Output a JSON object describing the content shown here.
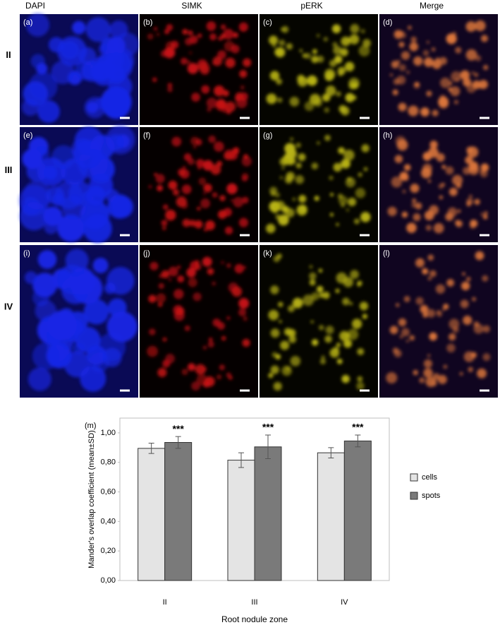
{
  "figure": {
    "columns": [
      "DAPI",
      "SIMK",
      "pERK",
      "Merge"
    ],
    "rows": [
      "II",
      "III",
      "IV"
    ],
    "panel_labels": [
      "(a)",
      "(b)",
      "(c)",
      "(d)",
      "(e)",
      "(f)",
      "(g)",
      "(h)",
      "(i)",
      "(j)",
      "(k)",
      "(l)"
    ]
  },
  "chart_data": {
    "type": "bar",
    "panel_label": "(m)",
    "x_label": "Root nodule zone",
    "y_label": "Mander's overlap coefficient (mean±SD)",
    "categories": [
      "II",
      "III",
      "IV"
    ],
    "series": [
      {
        "name": "cells",
        "color": "#e4e4e4",
        "values": [
          0.895,
          0.815,
          0.865
        ],
        "errors": [
          0.035,
          0.05,
          0.035
        ]
      },
      {
        "name": "spots",
        "color": "#7a7a7a",
        "values": [
          0.935,
          0.905,
          0.945
        ],
        "errors": [
          0.04,
          0.08,
          0.04
        ]
      }
    ],
    "annotations": [
      "***",
      "***",
      "***"
    ],
    "ylim": [
      0,
      1.1
    ],
    "yticks": [
      {
        "value": 0,
        "label": "0,00"
      },
      {
        "value": 0.2,
        "label": "0,20"
      },
      {
        "value": 0.4,
        "label": "0,40"
      },
      {
        "value": 0.6,
        "label": "0,60"
      },
      {
        "value": 0.8,
        "label": "0,80"
      },
      {
        "value": 1,
        "label": "1,00"
      }
    ],
    "legend": "right",
    "grid": false
  }
}
